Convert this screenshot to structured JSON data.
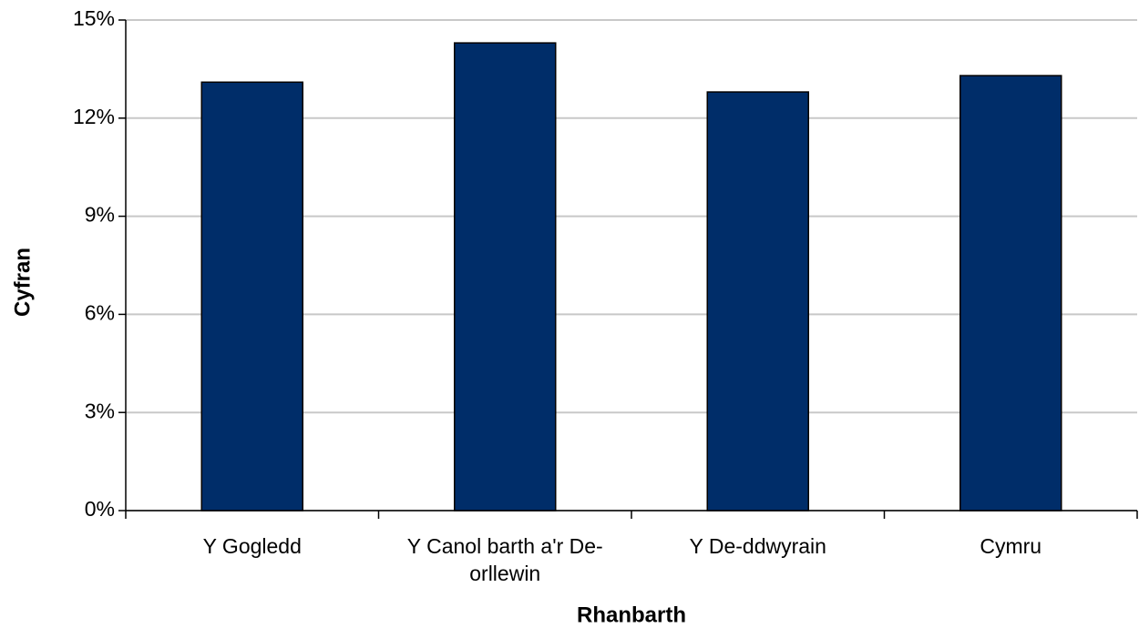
{
  "chart_data": {
    "type": "bar",
    "x_label": "Rhanbarth",
    "y_label": "Cyfran",
    "categories": [
      "Y Gogledd",
      "Y Canol barth a'r De-orllewin",
      "Y De-ddwyrain",
      "Cymru"
    ],
    "values": [
      13.1,
      14.3,
      12.8,
      13.3
    ],
    "color": "#002d69",
    "ylim": [
      0,
      15
    ],
    "yticks": [
      {
        "value": 0,
        "label": "0%"
      },
      {
        "value": 3,
        "label": "3%"
      },
      {
        "value": 6,
        "label": "6%"
      },
      {
        "value": 9,
        "label": "9%"
      },
      {
        "value": 12,
        "label": "12%"
      },
      {
        "value": 15,
        "label": "15%"
      }
    ],
    "grid": true
  }
}
